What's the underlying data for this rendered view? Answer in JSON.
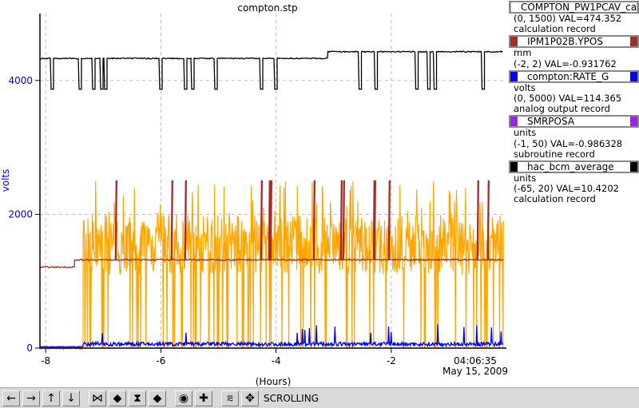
{
  "window": {
    "title": "compton.stp"
  },
  "chart_data": {
    "type": "line",
    "title": "compton.stp",
    "xlabel": "(Hours)",
    "ylabel": "volts",
    "xlim": [
      -8.1,
      0
    ],
    "ylim": [
      0,
      5000
    ],
    "x_ticks": [
      "-8",
      "-6",
      "-4",
      "-2"
    ],
    "y_ticks": [
      "0",
      "2000",
      "4000"
    ],
    "timestamp": [
      "04:06:35",
      "May 15, 2009"
    ],
    "grid": true,
    "series": [
      {
        "name": "COMPTON_PW1PCAV_ca",
        "color": "#ffa500",
        "range": "(0, 1500)",
        "value_text": "VAL=474.352",
        "record": "calculation record",
        "units": "",
        "segments": [
          {
            "x0": -8.1,
            "x1": -7.35,
            "base": 0,
            "spikes": [
              1
            ],
            "noise": 40
          },
          {
            "x0": -7.35,
            "x1": -0.05,
            "base": 1300,
            "spikes": [
              0,
              2100,
              2400
            ],
            "noise": 400
          }
        ]
      },
      {
        "name": "IPM1P02B.YPOS",
        "color": "#a52a2a",
        "range": "(-2, 2)",
        "value_text": "VAL=-0.931762",
        "record": "",
        "units": "mm",
        "segments": [
          {
            "x0": -8.1,
            "x1": -7.5,
            "base": 1210,
            "noise": 20
          },
          {
            "x0": -7.5,
            "x1": -0.05,
            "base": 1320,
            "noise": 20
          }
        ]
      },
      {
        "name": "compton:RATE_G",
        "color": "#0000ff",
        "range": "(0, 5000)",
        "value_text": "VAL=114.365",
        "record": "analog output record",
        "units": "volts",
        "segments": [
          {
            "x0": -8.1,
            "x1": -7.35,
            "base": 20,
            "noise": 10
          },
          {
            "x0": -7.35,
            "x1": -0.05,
            "base": 60,
            "noise": 60
          }
        ]
      },
      {
        "name": "SMRPOSA",
        "color": "#a020f0",
        "range": "(-1, 50)",
        "value_text": "VAL=-0.986328",
        "record": "subroutine record",
        "units": "units",
        "segments": []
      },
      {
        "name": "hac_bcm_average",
        "color": "#000000",
        "range": "(-65, 20)",
        "value_text": "VAL=10.4202",
        "record": "calculation record",
        "units": "units",
        "segments": [
          {
            "x0": -8.1,
            "x1": -3.1,
            "base": 4330,
            "dips": 3870,
            "noise": 15
          },
          {
            "x0": -3.1,
            "x1": -0.05,
            "base": 4430,
            "dips": 3870,
            "noise": 15
          }
        ]
      }
    ]
  },
  "legend": [
    {
      "name": "COMPTON_PW1PCAV_ca",
      "color": "#ffa500",
      "lines": [
        "(0, 1500) VAL=474.352",
        "calculation record"
      ]
    },
    {
      "name": "IPM1P02B.YPOS",
      "color": "#a52a2a",
      "lines": [
        "mm",
        "(-2, 2) VAL=-0.931762"
      ]
    },
    {
      "name": "compton:RATE_G",
      "color": "#0000ff",
      "lines": [
        "volts",
        "(0, 5000) VAL=114.365",
        "analog output record"
      ]
    },
    {
      "name": "SMRPOSA",
      "color": "#a020f0",
      "lines": [
        "units",
        "(-1, 50) VAL=-0.986328",
        "subroutine record"
      ]
    },
    {
      "name": "hac_bcm_average",
      "color": "#000000",
      "lines": [
        "units",
        "(-65, 20) VAL=10.4202",
        "calculation record"
      ]
    }
  ],
  "toolbar": {
    "mode_label": "SCROLLING",
    "buttons": [
      {
        "name": "scroll-left-button",
        "glyph": "←"
      },
      {
        "name": "scroll-right-button",
        "glyph": "→"
      },
      {
        "name": "scroll-up-button",
        "glyph": "↑"
      },
      {
        "name": "scroll-down-button",
        "glyph": "↓"
      },
      {
        "name": "zoom-in-x-button",
        "glyph": "⋈"
      },
      {
        "name": "zoom-out-x-button",
        "glyph": "◆"
      },
      {
        "name": "zoom-in-y-button",
        "glyph": "⧗"
      },
      {
        "name": "zoom-out-y-button",
        "glyph": "◆"
      },
      {
        "name": "autoscale-button",
        "glyph": "◉"
      },
      {
        "name": "add-button",
        "glyph": "✚"
      },
      {
        "name": "scroll-mode-button",
        "glyph": "⩳"
      },
      {
        "name": "zoom-mode-button",
        "glyph": "✥"
      }
    ]
  }
}
